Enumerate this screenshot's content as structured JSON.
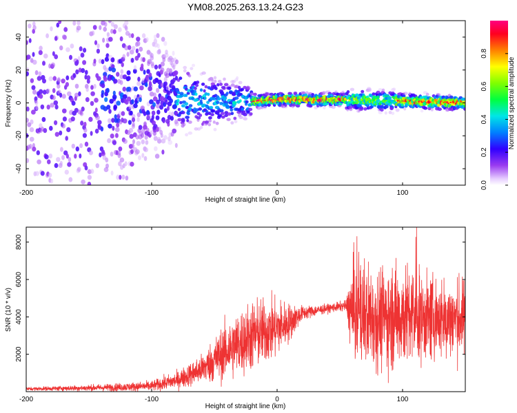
{
  "title": "YM08.2025.263.13.24.G23",
  "chart_data": [
    {
      "type": "heatmap",
      "title": "YM08.2025.263.13.24.G23",
      "xlabel": "Height of straight line (km)",
      "ylabel": "Frequency (Hz)",
      "xlim": [
        -200,
        150
      ],
      "ylim": [
        -50,
        50
      ],
      "xticks": [
        -200,
        -100,
        0,
        100
      ],
      "yticks": [
        -40,
        -20,
        0,
        20,
        40
      ],
      "colorbar": {
        "label": "Normalized spectral amplitude",
        "range": [
          0.0,
          1.0
        ],
        "ticks": [
          0.0,
          0.2,
          0.4,
          0.6,
          0.8
        ],
        "tick_labels": [
          "0.0",
          "0.2",
          "0.4",
          "0.6",
          "0.8"
        ]
      },
      "ridge": {
        "description": "Dominant frequency band centered near 0 Hz, widening below -80 km",
        "center_hz": [
          {
            "x": -140,
            "y": 5
          },
          {
            "x": -100,
            "y": 5
          },
          {
            "x": -60,
            "y": 1
          },
          {
            "x": -20,
            "y": 1
          },
          {
            "x": 0,
            "y": 2
          },
          {
            "x": 50,
            "y": 2
          },
          {
            "x": 100,
            "y": 1
          },
          {
            "x": 150,
            "y": 0
          }
        ]
      }
    },
    {
      "type": "line",
      "xlabel": "Height of straight line (km)",
      "ylabel": "SNR (10 * v/v)",
      "xlim": [
        -200,
        150
      ],
      "ylim": [
        0,
        8800
      ],
      "xticks": [
        -200,
        -100,
        0,
        100
      ],
      "yticks": [
        2000,
        4000,
        6000,
        8000
      ],
      "series": [
        {
          "name": "SNR",
          "color": "#ee3333",
          "envelope": [
            {
              "x": -200,
              "mean": 150,
              "spread": 80
            },
            {
              "x": -150,
              "mean": 200,
              "spread": 150
            },
            {
              "x": -120,
              "mean": 250,
              "spread": 200
            },
            {
              "x": -100,
              "mean": 300,
              "spread": 250
            },
            {
              "x": -80,
              "mean": 600,
              "spread": 400
            },
            {
              "x": -60,
              "mean": 1200,
              "spread": 700
            },
            {
              "x": -40,
              "mean": 2200,
              "spread": 1400
            },
            {
              "x": -20,
              "mean": 3000,
              "spread": 1700
            },
            {
              "x": 0,
              "mean": 3400,
              "spread": 1400
            },
            {
              "x": 10,
              "mean": 3700,
              "spread": 900
            },
            {
              "x": 20,
              "mean": 4200,
              "spread": 350
            },
            {
              "x": 40,
              "mean": 4450,
              "spread": 200
            },
            {
              "x": 55,
              "mean": 4600,
              "spread": 250
            },
            {
              "x": 60,
              "mean": 4300,
              "spread": 2500
            },
            {
              "x": 80,
              "mean": 4000,
              "spread": 2400
            },
            {
              "x": 100,
              "mean": 4100,
              "spread": 2500
            },
            {
              "x": 120,
              "mean": 3900,
              "spread": 2000
            },
            {
              "x": 150,
              "mean": 3900,
              "spread": 1800
            }
          ]
        }
      ]
    }
  ]
}
